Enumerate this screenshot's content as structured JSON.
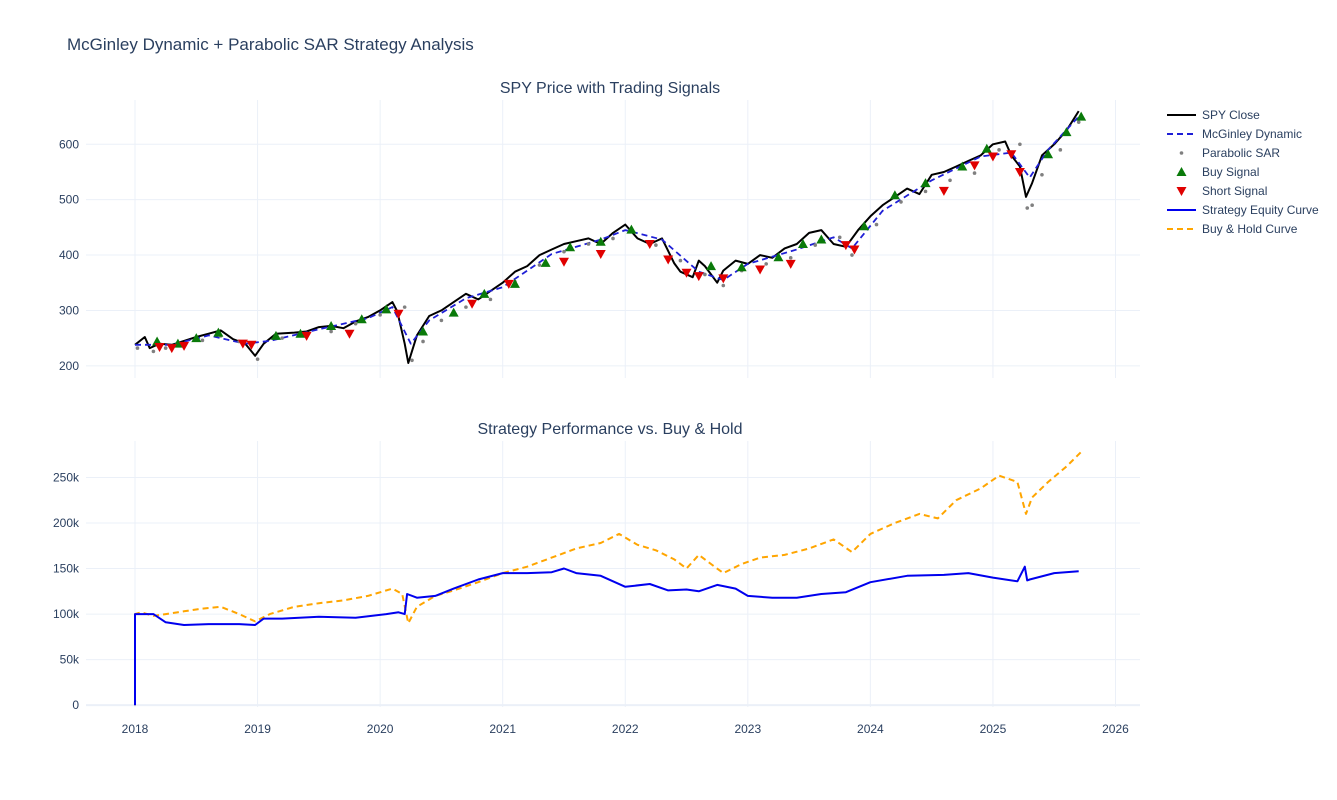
{
  "figure": {
    "title": "McGinley Dynamic + Parabolic SAR Strategy Analysis"
  },
  "colors": {
    "spy_close": "#000000",
    "mcginley": "#1f1fd6",
    "psar": "#808080",
    "buy": "#0a7a0a",
    "short": "#e00000",
    "strategy": "#0000ee",
    "buyhold": "#ffa500",
    "text": "#2a3f5f",
    "grid": "#ebf0f8"
  },
  "chart_data": [
    {
      "type": "line",
      "title": "SPY Price with Trading Signals",
      "xlabel": "",
      "ylabel": "",
      "x_range": [
        2017.6,
        2026.2
      ],
      "ylim": [
        178,
        680
      ],
      "y_ticks": [
        200,
        300,
        400,
        500,
        600
      ],
      "y_tick_labels": [
        "200",
        "300",
        "400",
        "500",
        "600"
      ],
      "grid": true,
      "legend": "right",
      "series": [
        {
          "name": "SPY Close",
          "style": "solid",
          "x": [
            2018.0,
            2018.08,
            2018.12,
            2018.2,
            2018.3,
            2018.4,
            2018.5,
            2018.6,
            2018.7,
            2018.8,
            2018.9,
            2018.98,
            2019.05,
            2019.15,
            2019.3,
            2019.4,
            2019.5,
            2019.6,
            2019.7,
            2019.8,
            2019.9,
            2020.0,
            2020.1,
            2020.14,
            2020.2,
            2020.23,
            2020.3,
            2020.4,
            2020.5,
            2020.6,
            2020.7,
            2020.8,
            2020.9,
            2021.0,
            2021.1,
            2021.2,
            2021.3,
            2021.4,
            2021.5,
            2021.6,
            2021.7,
            2021.8,
            2021.9,
            2022.0,
            2022.1,
            2022.2,
            2022.3,
            2022.4,
            2022.45,
            2022.55,
            2022.6,
            2022.65,
            2022.75,
            2022.8,
            2022.9,
            2023.0,
            2023.1,
            2023.2,
            2023.3,
            2023.4,
            2023.5,
            2023.6,
            2023.7,
            2023.8,
            2023.9,
            2024.0,
            2024.1,
            2024.2,
            2024.3,
            2024.4,
            2024.5,
            2024.6,
            2024.7,
            2024.8,
            2024.9,
            2025.0,
            2025.1,
            2025.15,
            2025.22,
            2025.27,
            2025.32,
            2025.4,
            2025.5,
            2025.6,
            2025.7
          ],
          "y": [
            238,
            252,
            232,
            240,
            238,
            245,
            252,
            258,
            264,
            248,
            240,
            218,
            240,
            258,
            260,
            262,
            270,
            272,
            268,
            280,
            288,
            300,
            315,
            298,
            240,
            205,
            255,
            290,
            300,
            315,
            330,
            320,
            335,
            350,
            370,
            380,
            400,
            410,
            420,
            425,
            430,
            420,
            440,
            455,
            430,
            420,
            430,
            385,
            370,
            360,
            390,
            380,
            350,
            372,
            390,
            384,
            400,
            395,
            412,
            420,
            440,
            445,
            420,
            415,
            445,
            470,
            490,
            505,
            520,
            510,
            545,
            550,
            560,
            570,
            580,
            600,
            605,
            580,
            560,
            505,
            530,
            580,
            600,
            625,
            660
          ]
        },
        {
          "name": "McGinley Dynamic",
          "style": "dash",
          "x": [
            2018.0,
            2018.3,
            2018.6,
            2018.9,
            2019.1,
            2019.5,
            2019.9,
            2020.1,
            2020.25,
            2020.4,
            2020.7,
            2021.0,
            2021.4,
            2021.8,
            2022.0,
            2022.3,
            2022.6,
            2022.8,
            2023.0,
            2023.4,
            2023.7,
            2023.85,
            2024.1,
            2024.5,
            2024.9,
            2025.15,
            2025.3,
            2025.45,
            2025.7
          ],
          "y": [
            238,
            238,
            255,
            240,
            245,
            266,
            286,
            306,
            240,
            282,
            322,
            342,
            402,
            428,
            445,
            428,
            370,
            355,
            384,
            410,
            432,
            412,
            480,
            535,
            578,
            585,
            540,
            590,
            650
          ]
        },
        {
          "name": "Parabolic SAR",
          "style": "dots",
          "x": [
            2018.02,
            2018.15,
            2018.25,
            2018.4,
            2018.55,
            2018.7,
            2018.85,
            2019.0,
            2019.2,
            2019.4,
            2019.6,
            2019.8,
            2020.0,
            2020.2,
            2020.26,
            2020.35,
            2020.5,
            2020.7,
            2020.9,
            2021.1,
            2021.3,
            2021.5,
            2021.7,
            2021.9,
            2022.05,
            2022.25,
            2022.45,
            2022.65,
            2022.8,
            2022.95,
            2023.15,
            2023.35,
            2023.55,
            2023.75,
            2023.85,
            2024.05,
            2024.25,
            2024.45,
            2024.65,
            2024.85,
            2025.05,
            2025.22,
            2025.28,
            2025.32,
            2025.4,
            2025.55,
            2025.7
          ],
          "y": [
            232,
            226,
            232,
            238,
            246,
            254,
            244,
            212,
            250,
            256,
            262,
            276,
            292,
            306,
            210,
            244,
            282,
            306,
            320,
            352,
            382,
            406,
            420,
            430,
            445,
            418,
            390,
            365,
            345,
            372,
            384,
            395,
            418,
            432,
            400,
            455,
            496,
            515,
            535,
            548,
            590,
            600,
            485,
            490,
            545,
            590,
            640
          ]
        }
      ],
      "buy_signals": {
        "name": "Buy Signal",
        "x": [
          2018.18,
          2018.35,
          2018.5,
          2018.68,
          2019.15,
          2019.35,
          2019.6,
          2019.85,
          2020.05,
          2020.35,
          2020.6,
          2020.85,
          2021.1,
          2021.35,
          2021.55,
          2021.8,
          2022.05,
          2022.7,
          2022.95,
          2023.25,
          2023.45,
          2023.6,
          2023.95,
          2024.2,
          2024.45,
          2024.75,
          2024.95,
          2025.45,
          2025.6,
          2025.72
        ],
        "y": [
          244,
          240,
          250,
          260,
          254,
          258,
          272,
          284,
          302,
          262,
          296,
          330,
          348,
          386,
          414,
          424,
          446,
          380,
          378,
          396,
          420,
          428,
          452,
          508,
          530,
          560,
          592,
          582,
          622,
          650
        ]
      },
      "short_signals": {
        "name": "Short Signal",
        "x": [
          2018.2,
          2018.3,
          2018.4,
          2018.88,
          2018.95,
          2019.4,
          2019.75,
          2020.15,
          2020.75,
          2021.05,
          2021.5,
          2021.8,
          2022.2,
          2022.35,
          2022.5,
          2022.6,
          2022.8,
          2023.1,
          2023.35,
          2023.8,
          2023.87,
          2024.6,
          2024.85,
          2025.0,
          2025.15,
          2025.22
        ],
        "y": [
          234,
          232,
          236,
          240,
          238,
          254,
          258,
          294,
          312,
          348,
          388,
          402,
          420,
          392,
          368,
          362,
          358,
          374,
          384,
          418,
          410,
          516,
          562,
          578,
          582,
          550
        ]
      }
    },
    {
      "type": "line",
      "title": "Strategy Performance vs. Buy & Hold",
      "xlabel": "",
      "ylabel": "",
      "x_range": [
        2017.6,
        2026.2
      ],
      "x_ticks": [
        2018,
        2019,
        2020,
        2021,
        2022,
        2023,
        2024,
        2025,
        2026
      ],
      "x_tick_labels": [
        "2018",
        "2019",
        "2020",
        "2021",
        "2022",
        "2023",
        "2024",
        "2025",
        "2026"
      ],
      "ylim": [
        -2000,
        290000
      ],
      "y_ticks": [
        0,
        50000,
        100000,
        150000,
        200000,
        250000
      ],
      "y_tick_labels": [
        "0",
        "50k",
        "100k",
        "150k",
        "200k",
        "250k"
      ],
      "grid": true,
      "legend": "right",
      "series": [
        {
          "name": "Strategy Equity Curve",
          "style": "solid",
          "x": [
            2018.0,
            2018.0,
            2018.02,
            2018.15,
            2018.25,
            2018.4,
            2018.6,
            2018.85,
            2018.98,
            2019.05,
            2019.2,
            2019.5,
            2019.8,
            2020.05,
            2020.15,
            2020.2,
            2020.22,
            2020.3,
            2020.45,
            2020.6,
            2020.8,
            2021.0,
            2021.2,
            2021.4,
            2021.5,
            2021.6,
            2021.8,
            2022.0,
            2022.2,
            2022.35,
            2022.5,
            2022.6,
            2022.75,
            2022.9,
            2023.0,
            2023.2,
            2023.4,
            2023.6,
            2023.8,
            2024.0,
            2024.3,
            2024.6,
            2024.8,
            2025.0,
            2025.2,
            2025.26,
            2025.28,
            2025.3,
            2025.5,
            2025.7
          ],
          "y": [
            0,
            100000,
            100000,
            100000,
            91000,
            88000,
            89000,
            89000,
            88000,
            95000,
            95000,
            97000,
            96000,
            100000,
            102000,
            100000,
            122000,
            118000,
            120000,
            128000,
            138000,
            145000,
            145000,
            146000,
            150000,
            145000,
            142000,
            130000,
            133000,
            126000,
            127000,
            125000,
            132000,
            128000,
            120000,
            118000,
            118000,
            122000,
            124000,
            135000,
            142000,
            143000,
            145000,
            140000,
            136000,
            152000,
            137000,
            138000,
            145000,
            147000
          ]
        },
        {
          "name": "Buy & Hold Curve",
          "style": "dash",
          "x": [
            2018.0,
            2018.0,
            2018.05,
            2018.15,
            2018.25,
            2018.4,
            2018.55,
            2018.7,
            2018.85,
            2018.98,
            2019.1,
            2019.3,
            2019.5,
            2019.7,
            2019.9,
            2020.1,
            2020.18,
            2020.23,
            2020.3,
            2020.45,
            2020.6,
            2020.8,
            2021.0,
            2021.2,
            2021.4,
            2021.6,
            2021.8,
            2021.95,
            2022.1,
            2022.25,
            2022.4,
            2022.5,
            2022.6,
            2022.7,
            2022.8,
            2022.95,
            2023.1,
            2023.3,
            2023.5,
            2023.7,
            2023.85,
            2024.0,
            2024.2,
            2024.4,
            2024.55,
            2024.7,
            2024.9,
            2025.05,
            2025.2,
            2025.27,
            2025.32,
            2025.45,
            2025.6,
            2025.72
          ],
          "y": [
            0,
            100000,
            102000,
            98000,
            100000,
            103000,
            106000,
            108000,
            100000,
            92000,
            100000,
            108000,
            112000,
            115000,
            120000,
            128000,
            122000,
            90000,
            108000,
            120000,
            126000,
            135000,
            145000,
            152000,
            162000,
            172000,
            178000,
            188000,
            176000,
            170000,
            160000,
            150000,
            165000,
            155000,
            145000,
            155000,
            162000,
            165000,
            172000,
            182000,
            168000,
            188000,
            200000,
            210000,
            205000,
            225000,
            238000,
            252000,
            245000,
            210000,
            228000,
            245000,
            262000,
            278000
          ]
        }
      ]
    }
  ]
}
